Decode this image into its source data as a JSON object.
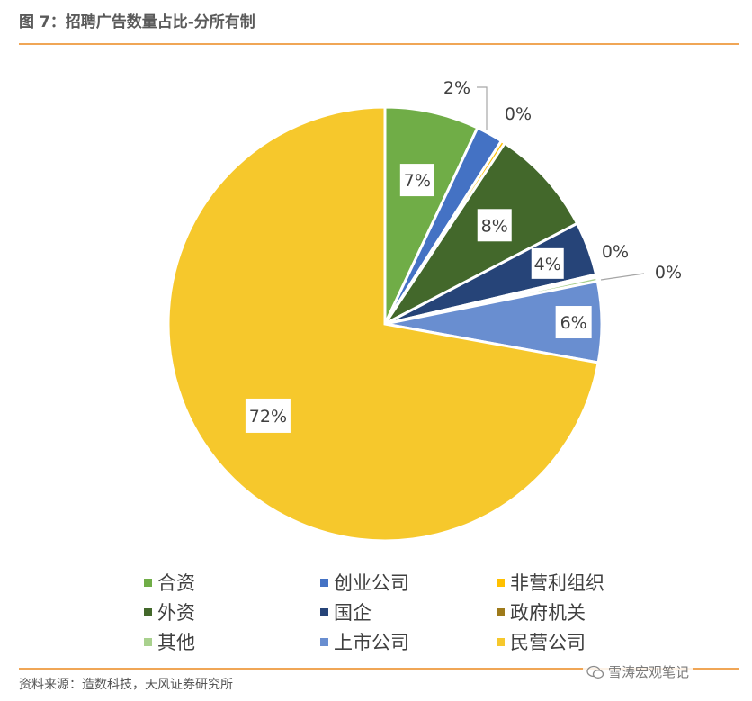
{
  "header": {
    "title": "图 7：招聘广告数量占比-分所有制"
  },
  "footer": {
    "source": "资料来源：造数科技，天风证券研究所",
    "watermark": "雪涛宏观笔记"
  },
  "colors": {
    "合资": "#70ad47",
    "创业公司": "#4472c4",
    "非营利组织": "#ffc000",
    "外资": "#43682b",
    "国企": "#264478",
    "政府机关": "#9e7a1a",
    "其他": "#a9d18e",
    "上市公司": "#698ed0",
    "民营公司": "#f6c82c"
  },
  "chart_data": {
    "type": "pie",
    "slices": [
      {
        "name": "合资",
        "value": 7,
        "label": "7%"
      },
      {
        "name": "创业公司",
        "value": 2,
        "label": "2%"
      },
      {
        "name": "非营利组织",
        "value": 0.3,
        "label": "0%"
      },
      {
        "name": "外资",
        "value": 8,
        "label": "8%"
      },
      {
        "name": "国企",
        "value": 4,
        "label": "4%"
      },
      {
        "name": "政府机关",
        "value": 0.2,
        "label": "0%"
      },
      {
        "name": "其他",
        "value": 0.3,
        "label": "0%"
      },
      {
        "name": "上市公司",
        "value": 6,
        "label": "6%"
      },
      {
        "name": "民营公司",
        "value": 72,
        "label": "72%"
      }
    ],
    "legend": {
      "placement": "bottom",
      "entries": [
        "合资",
        "创业公司",
        "非营利组织",
        "外资",
        "国企",
        "政府机关",
        "其他",
        "上市公司",
        "民营公司"
      ]
    }
  }
}
